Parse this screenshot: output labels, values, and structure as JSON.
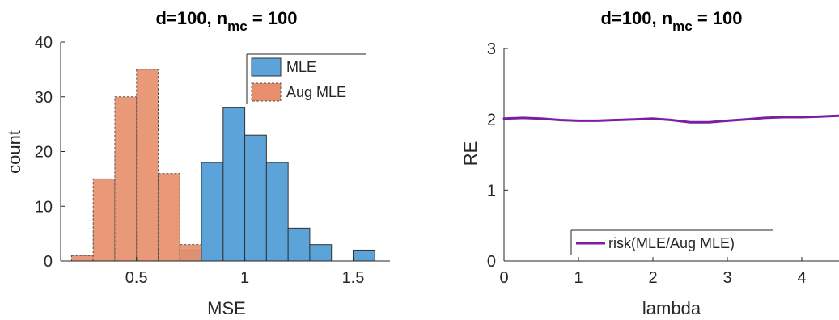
{
  "chart_data": [
    {
      "type": "bar",
      "subtype": "histogram",
      "title": "d=100, n_mc = 100",
      "title_parts": {
        "main": "d=100, n",
        "subscript": "mc",
        "rest": " = 100"
      },
      "xlabel": "MSE",
      "ylabel": "count",
      "xlim": [
        0.15,
        1.67
      ],
      "ylim": [
        0,
        40
      ],
      "xticks": [
        0.5,
        1,
        1.5
      ],
      "xtick_labels": [
        "0.5",
        "1",
        "1.5"
      ],
      "yticks": [
        0,
        10,
        20,
        30,
        40
      ],
      "ytick_labels": [
        "0",
        "10",
        "20",
        "30",
        "40"
      ],
      "grid": false,
      "legend_position": "top-right",
      "series": [
        {
          "name": "MLE",
          "color": "#5ba3d9",
          "edge": "#333333",
          "edge_style": "solid",
          "bins": [
            {
              "x0": 0.7,
              "x1": 0.8,
              "count": 2
            },
            {
              "x0": 0.8,
              "x1": 0.9,
              "count": 18
            },
            {
              "x0": 0.9,
              "x1": 1.0,
              "count": 28
            },
            {
              "x0": 1.0,
              "x1": 1.1,
              "count": 23
            },
            {
              "x0": 1.1,
              "x1": 1.2,
              "count": 18
            },
            {
              "x0": 1.2,
              "x1": 1.3,
              "count": 6
            },
            {
              "x0": 1.3,
              "x1": 1.4,
              "count": 3
            },
            {
              "x0": 1.5,
              "x1": 1.6,
              "count": 2
            }
          ]
        },
        {
          "name": "Aug MLE",
          "color": "#e8906c",
          "edge": "#555555",
          "edge_style": "dashed",
          "bins": [
            {
              "x0": 0.2,
              "x1": 0.3,
              "count": 1
            },
            {
              "x0": 0.3,
              "x1": 0.4,
              "count": 15
            },
            {
              "x0": 0.4,
              "x1": 0.5,
              "count": 30
            },
            {
              "x0": 0.5,
              "x1": 0.6,
              "count": 35
            },
            {
              "x0": 0.6,
              "x1": 0.7,
              "count": 16
            },
            {
              "x0": 0.7,
              "x1": 0.8,
              "count": 3
            }
          ]
        }
      ]
    },
    {
      "type": "line",
      "title": "d=100, n_mc = 100",
      "title_parts": {
        "main": "d=100, n",
        "subscript": "mc",
        "rest": " = 100"
      },
      "xlabel": "lambda",
      "ylabel": "RE",
      "xlim": [
        0,
        4.5
      ],
      "ylim": [
        0,
        3
      ],
      "xticks": [
        0,
        1,
        2,
        3,
        4
      ],
      "xtick_labels": [
        "0",
        "1",
        "2",
        "3",
        "4"
      ],
      "yticks": [
        0,
        1,
        2,
        3
      ],
      "ytick_labels": [
        "0",
        "1",
        "2",
        "3"
      ],
      "grid": false,
      "legend_position": "bottom",
      "series": [
        {
          "name": "risk(MLE/Aug MLE)",
          "color": "#7b1fa2",
          "x": [
            0,
            0.25,
            0.5,
            0.75,
            1.0,
            1.25,
            1.5,
            1.75,
            2.0,
            2.25,
            2.5,
            2.75,
            3.0,
            3.25,
            3.5,
            3.75,
            4.0,
            4.25,
            4.5
          ],
          "y": [
            2.01,
            2.02,
            2.01,
            1.99,
            1.98,
            1.98,
            1.99,
            2.0,
            2.01,
            1.99,
            1.96,
            1.96,
            1.98,
            2.0,
            2.02,
            2.03,
            2.03,
            2.04,
            2.05
          ]
        }
      ]
    }
  ]
}
